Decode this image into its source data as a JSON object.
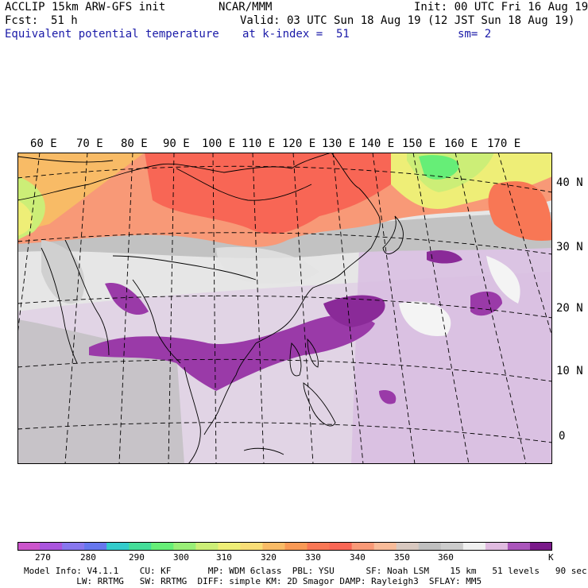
{
  "header": {
    "model_title": "ACCLIP 15km ARW-GFS init",
    "org": "NCAR/MMM",
    "init": "Init: 00 UTC Fri 16 Aug 19",
    "fcst_label": "Fcst:",
    "fcst_value": "51 h",
    "valid": "Valid: 03 UTC Sun 18 Aug 19 (12 JST Sun 18 Aug 19)",
    "field_name": "Equivalent potential temperature",
    "level": "at k-index =  51",
    "smoothing": "sm= 2"
  },
  "map": {
    "lon_labels": [
      "60 E",
      "70 E",
      "80 E",
      "90 E",
      "100 E",
      "110 E",
      "120 E",
      "130 E",
      "140 E",
      "150 E",
      "160 E",
      "170 E"
    ],
    "lat_labels": [
      "40 N",
      "30 N",
      "20 N",
      "10 N",
      "0"
    ],
    "ocean_color": "#e8e8e8",
    "coastline_color": "#000000",
    "gridline_style": "dashed"
  },
  "colorbar": {
    "ticks": [
      "270",
      "280",
      "290",
      "300",
      "310",
      "320",
      "330",
      "340",
      "350",
      "360"
    ],
    "unit": "K",
    "colors": [
      "#cc55cc",
      "#aa55dd",
      "#8877ee",
      "#6677ee",
      "#33cccc",
      "#44dd99",
      "#66ee77",
      "#99ee77",
      "#ccee77",
      "#eeee77",
      "#f8dd77",
      "#f8bb66",
      "#f89955",
      "#f87755",
      "#f86655",
      "#f89977",
      "#f8bb99",
      "#d8c8c0",
      "#c0c0c0",
      "#cccccc",
      "#f0f0f0",
      "#e0bbe0",
      "#aa55bb",
      "#7a1a8a"
    ]
  },
  "footer": {
    "line1": "Model Info: V4.1.1    CU: KF       MP: WDM 6class  PBL: YSU      SF: Noah LSM    15 km   51 levels   90 sec",
    "line2": "          LW: RRTMG   SW: RRTMG  DIFF: simple KM: 2D Smagor DAMP: Rayleigh3  SFLAY: MM5"
  }
}
